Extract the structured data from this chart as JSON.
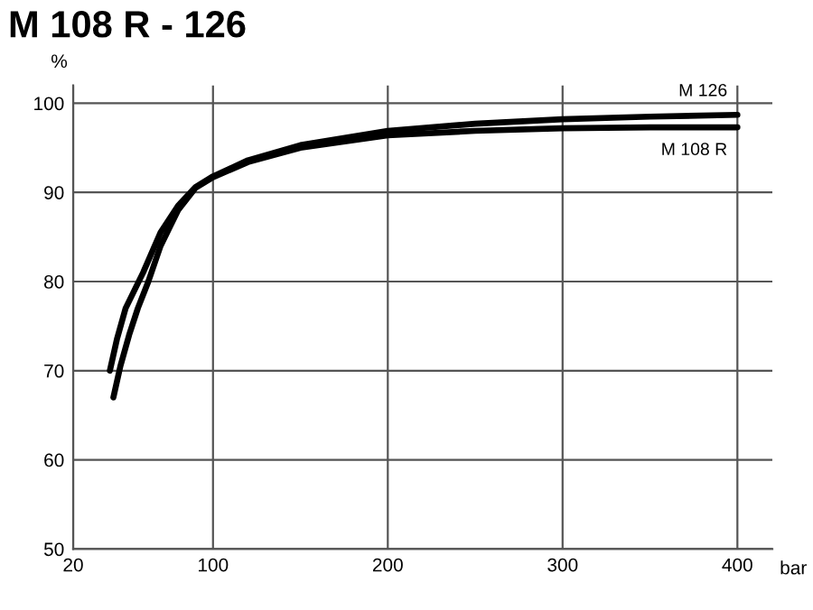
{
  "chart_data": {
    "type": "line",
    "title": "M 108 R - 126",
    "xlabel": "bar",
    "ylabel": "%",
    "xlim": [
      20,
      420
    ],
    "ylim": [
      50,
      102
    ],
    "xticks": [
      20,
      100,
      200,
      300,
      400
    ],
    "yticks": [
      50,
      60,
      70,
      80,
      90,
      100
    ],
    "grid": true,
    "marker": "none",
    "line_style": "solid",
    "series": [
      {
        "name": "M 126",
        "color": "#000000",
        "x": [
          41,
          45,
          50,
          55,
          60,
          70,
          80,
          90,
          100,
          120,
          150,
          200,
          250,
          300,
          350,
          400
        ],
        "values": [
          70,
          73.5,
          77,
          79,
          81,
          85.5,
          88.5,
          90.6,
          91.8,
          93.6,
          95.3,
          96.9,
          97.7,
          98.2,
          98.5,
          98.7
        ]
      },
      {
        "name": "M 108 R",
        "color": "#000000",
        "x": [
          43,
          47,
          52,
          57,
          63,
          70,
          80,
          90,
          100,
          120,
          150,
          200,
          250,
          300,
          350,
          400
        ],
        "values": [
          67,
          70.5,
          74,
          77,
          80,
          84,
          88,
          90.5,
          91.7,
          93.4,
          95,
          96.4,
          96.9,
          97.2,
          97.3,
          97.3
        ]
      }
    ]
  }
}
